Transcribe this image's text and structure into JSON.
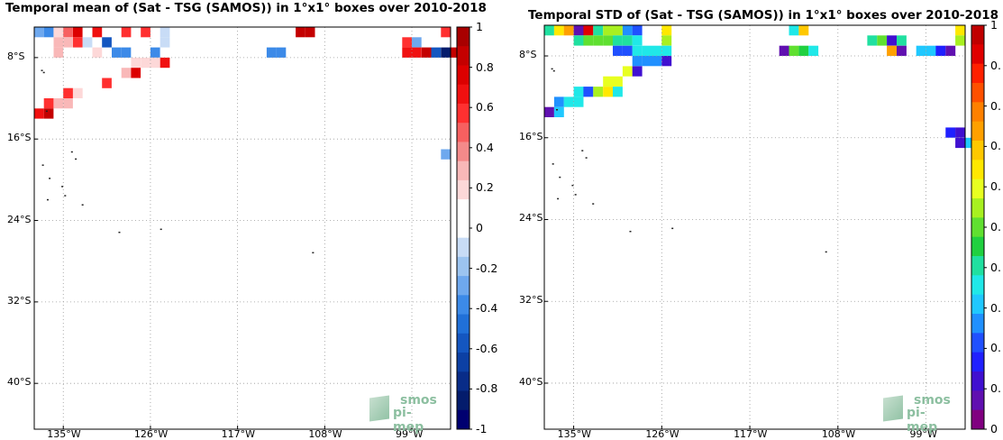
{
  "left": {
    "title": "Temporal mean of (Sat - TSG (SAMOS)) in 1°x1° boxes over 2010-2018",
    "lat_ticks": [
      "8°S",
      "16°S",
      "24°S",
      "32°S",
      "40°S"
    ],
    "lon_ticks": [
      "135°W",
      "126°W",
      "117°W",
      "108°W",
      "99°W"
    ],
    "colorbar": {
      "ticks": [
        "1",
        "0.8",
        "0.6",
        "0.4",
        "0.2",
        "0",
        "-0.2",
        "-0.4",
        "-0.6",
        "-0.8",
        "-1"
      ],
      "colors": [
        "#a80000",
        "#c40000",
        "#dc0000",
        "#f01010",
        "#ff3030",
        "#f76060",
        "#f48a8a",
        "#f9b8b8",
        "#fdd8d8",
        "#ffffff",
        "#ffffff",
        "#c8dcf6",
        "#9cc4f0",
        "#6ea8ee",
        "#3c8ae8",
        "#2070d8",
        "#1456c0",
        "#0c40a4",
        "#082c88",
        "#041c6c",
        "#000070"
      ]
    },
    "logo": {
      "line1": "smos",
      "line2": "pi-mep"
    }
  },
  "right": {
    "title": "Temporal STD of (Sat - TSG (SAMOS)) in 1°x1° boxes over 2010-2018",
    "lat_ticks": [
      "8°S",
      "16°S",
      "24°S",
      "32°S",
      "40°S"
    ],
    "lon_ticks": [
      "135°W",
      "126°W",
      "117°W",
      "108°W",
      "99°W"
    ],
    "colorbar": {
      "ticks": [
        "1",
        "0.",
        "0.",
        "0.",
        "0.",
        "0.",
        "0.",
        "0.",
        "0.",
        "0.",
        "0"
      ],
      "colors": [
        "#c00000",
        "#e00000",
        "#ff2000",
        "#ff5000",
        "#ff8000",
        "#ffa000",
        "#ffc800",
        "#ffe800",
        "#e8ff20",
        "#a8f020",
        "#60e030",
        "#20d040",
        "#20e0a0",
        "#20e8e8",
        "#20c8ff",
        "#2090ff",
        "#2050ff",
        "#2020ff",
        "#4010d0",
        "#6010b0",
        "#800080"
      ]
    },
    "logo": {
      "line1": "smos",
      "line2": "pi-mep"
    }
  },
  "chart_data": [
    {
      "type": "heatmap",
      "title": "Temporal mean of (Sat - TSG (SAMOS)) in 1°x1° boxes over 2010-2018",
      "xlabel": "",
      "ylabel": "",
      "x_range": [
        -138,
        -95
      ],
      "y_range": [
        -44.5,
        -5
      ],
      "x_ticks": [
        -135,
        -126,
        -117,
        -108,
        -99
      ],
      "y_ticks": [
        -8,
        -16,
        -24,
        -32,
        -40
      ],
      "clim": [
        -1,
        1
      ],
      "grid": true,
      "cells": [
        {
          "lon": -137.5,
          "lat": -5.5,
          "v": -0.3
        },
        {
          "lon": -136.5,
          "lat": -5.5,
          "v": -0.4
        },
        {
          "lon": -135.5,
          "lat": -5.5,
          "v": 0.2
        },
        {
          "lon": -134.5,
          "lat": -5.5,
          "v": 0.5
        },
        {
          "lon": -133.5,
          "lat": -5.5,
          "v": 0.8
        },
        {
          "lon": -132.5,
          "lat": -5.5,
          "v": 0.1
        },
        {
          "lon": -131.5,
          "lat": -5.5,
          "v": 0.7
        },
        {
          "lon": -128.5,
          "lat": -5.5,
          "v": 0.6
        },
        {
          "lon": -126.5,
          "lat": -5.5,
          "v": 0.6
        },
        {
          "lon": -124.5,
          "lat": -5.5,
          "v": -0.1
        },
        {
          "lon": -110.5,
          "lat": -5.5,
          "v": 0.9
        },
        {
          "lon": -109.5,
          "lat": -5.5,
          "v": 0.9
        },
        {
          "lon": -95.5,
          "lat": -5.5,
          "v": 0.6
        },
        {
          "lon": -135.5,
          "lat": -6.5,
          "v": 0.3
        },
        {
          "lon": -134.5,
          "lat": -6.5,
          "v": 0.3
        },
        {
          "lon": -133.5,
          "lat": -6.5,
          "v": 0.6
        },
        {
          "lon": -132.5,
          "lat": -6.5,
          "v": -0.1
        },
        {
          "lon": -130.5,
          "lat": -6.5,
          "v": -0.6
        },
        {
          "lon": -124.5,
          "lat": -6.5,
          "v": -0.1
        },
        {
          "lon": -101.5,
          "lat": -6.5,
          "v": 0.1
        },
        {
          "lon": -100.5,
          "lat": -6.5,
          "v": 0.1
        },
        {
          "lon": -99.5,
          "lat": -6.5,
          "v": 0.6
        },
        {
          "lon": -98.5,
          "lat": -6.5,
          "v": -0.3
        },
        {
          "lon": -135.5,
          "lat": -7.5,
          "v": 0.3
        },
        {
          "lon": -131.5,
          "lat": -7.5,
          "v": 0.2
        },
        {
          "lon": -129.5,
          "lat": -7.5,
          "v": -0.4
        },
        {
          "lon": -128.5,
          "lat": -7.5,
          "v": -0.4
        },
        {
          "lon": -127.5,
          "lat": -7.5,
          "v": 0.1
        },
        {
          "lon": -125.5,
          "lat": -7.5,
          "v": -0.4
        },
        {
          "lon": -113.5,
          "lat": -7.5,
          "v": -0.4
        },
        {
          "lon": -112.5,
          "lat": -7.5,
          "v": -0.4
        },
        {
          "lon": -99.5,
          "lat": -7.5,
          "v": 0.7
        },
        {
          "lon": -98.5,
          "lat": -7.5,
          "v": 0.7
        },
        {
          "lon": -97.5,
          "lat": -7.5,
          "v": 0.9
        },
        {
          "lon": -96.5,
          "lat": -7.5,
          "v": -0.6
        },
        {
          "lon": -95.5,
          "lat": -7.5,
          "v": -0.9
        },
        {
          "lon": -94.5,
          "lat": -7.5,
          "v": 0.9
        },
        {
          "lon": -127.5,
          "lat": -8.5,
          "v": 0.2
        },
        {
          "lon": -126.5,
          "lat": -8.5,
          "v": 0.2
        },
        {
          "lon": -125.5,
          "lat": -8.5,
          "v": 0.2
        },
        {
          "lon": -124.5,
          "lat": -8.5,
          "v": 0.7
        },
        {
          "lon": -128.5,
          "lat": -9.5,
          "v": 0.3
        },
        {
          "lon": -127.5,
          "lat": -9.5,
          "v": 0.8
        },
        {
          "lon": -130.5,
          "lat": -10.5,
          "v": 0.6
        },
        {
          "lon": -134.5,
          "lat": -11.5,
          "v": 0.6
        },
        {
          "lon": -133.5,
          "lat": -11.5,
          "v": 0.2
        },
        {
          "lon": -136.5,
          "lat": -12.5,
          "v": 0.6
        },
        {
          "lon": -135.5,
          "lat": -12.5,
          "v": 0.3
        },
        {
          "lon": -134.5,
          "lat": -12.5,
          "v": 0.3
        },
        {
          "lon": -137.5,
          "lat": -13.5,
          "v": 0.7
        },
        {
          "lon": -136.5,
          "lat": -13.5,
          "v": 0.9
        },
        {
          "lon": -95.5,
          "lat": -17.5,
          "v": -0.3
        }
      ]
    },
    {
      "type": "heatmap",
      "title": "Temporal STD of (Sat - TSG (SAMOS)) in 1°x1° boxes over 2010-2018",
      "xlabel": "",
      "ylabel": "",
      "x_range": [
        -138,
        -95
      ],
      "y_range": [
        -44.5,
        -5
      ],
      "x_ticks": [
        -135,
        -126,
        -117,
        -108,
        -99
      ],
      "y_ticks": [
        -8,
        -16,
        -24,
        -32,
        -40
      ],
      "clim": [
        0,
        1
      ],
      "grid": true,
      "cells": [
        {
          "lon": -137.5,
          "lat": -5.5,
          "v": 0.4
        },
        {
          "lon": -136.5,
          "lat": -5.5,
          "v": 0.65
        },
        {
          "lon": -135.5,
          "lat": -5.5,
          "v": 0.75
        },
        {
          "lon": -134.5,
          "lat": -5.5,
          "v": 0.05
        },
        {
          "lon": -133.5,
          "lat": -5.5,
          "v": 0.95
        },
        {
          "lon": -132.5,
          "lat": -5.5,
          "v": 0.4
        },
        {
          "lon": -131.5,
          "lat": -5.5,
          "v": 0.55
        },
        {
          "lon": -130.5,
          "lat": -5.5,
          "v": 0.55
        },
        {
          "lon": -129.5,
          "lat": -5.5,
          "v": 0.25
        },
        {
          "lon": -128.5,
          "lat": -5.5,
          "v": 0.2
        },
        {
          "lon": -125.5,
          "lat": -5.5,
          "v": 0.65
        },
        {
          "lon": -112.5,
          "lat": -5.5,
          "v": 0.35
        },
        {
          "lon": -111.5,
          "lat": -5.5,
          "v": 0.7
        },
        {
          "lon": -95.5,
          "lat": -5.5,
          "v": 0.65
        },
        {
          "lon": -134.5,
          "lat": -6.5,
          "v": 0.4
        },
        {
          "lon": -133.5,
          "lat": -6.5,
          "v": 0.5
        },
        {
          "lon": -132.5,
          "lat": -6.5,
          "v": 0.5
        },
        {
          "lon": -131.5,
          "lat": -6.5,
          "v": 0.5
        },
        {
          "lon": -130.5,
          "lat": -6.5,
          "v": 0.4
        },
        {
          "lon": -129.5,
          "lat": -6.5,
          "v": 0.4
        },
        {
          "lon": -128.5,
          "lat": -6.5,
          "v": 0.35
        },
        {
          "lon": -125.5,
          "lat": -6.5,
          "v": 0.55
        },
        {
          "lon": -104.5,
          "lat": -6.5,
          "v": 0.4
        },
        {
          "lon": -103.5,
          "lat": -6.5,
          "v": 0.5
        },
        {
          "lon": -102.5,
          "lat": -6.5,
          "v": 0.1
        },
        {
          "lon": -101.5,
          "lat": -6.5,
          "v": 0.4
        },
        {
          "lon": -95.5,
          "lat": -6.5,
          "v": 0.55
        },
        {
          "lon": -130.5,
          "lat": -7.5,
          "v": 0.2
        },
        {
          "lon": -129.5,
          "lat": -7.5,
          "v": 0.2
        },
        {
          "lon": -128.5,
          "lat": -7.5,
          "v": 0.35
        },
        {
          "lon": -127.5,
          "lat": -7.5,
          "v": 0.35
        },
        {
          "lon": -126.5,
          "lat": -7.5,
          "v": 0.35
        },
        {
          "lon": -125.5,
          "lat": -7.5,
          "v": 0.35
        },
        {
          "lon": -113.5,
          "lat": -7.5,
          "v": 0.05
        },
        {
          "lon": -112.5,
          "lat": -7.5,
          "v": 0.5
        },
        {
          "lon": -111.5,
          "lat": -7.5,
          "v": 0.45
        },
        {
          "lon": -110.5,
          "lat": -7.5,
          "v": 0.35
        },
        {
          "lon": -102.5,
          "lat": -7.5,
          "v": 0.75
        },
        {
          "lon": -101.5,
          "lat": -7.5,
          "v": 0.05
        },
        {
          "lon": -99.5,
          "lat": -7.5,
          "v": 0.3
        },
        {
          "lon": -98.5,
          "lat": -7.5,
          "v": 0.3
        },
        {
          "lon": -97.5,
          "lat": -7.5,
          "v": 0.15
        },
        {
          "lon": -96.5,
          "lat": -7.5,
          "v": 0.05
        },
        {
          "lon": -128.5,
          "lat": -8.5,
          "v": 0.25
        },
        {
          "lon": -127.5,
          "lat": -8.5,
          "v": 0.25
        },
        {
          "lon": -126.5,
          "lat": -8.5,
          "v": 0.25
        },
        {
          "lon": -125.5,
          "lat": -8.5,
          "v": 0.1
        },
        {
          "lon": -129.5,
          "lat": -9.5,
          "v": 0.6
        },
        {
          "lon": -128.5,
          "lat": -9.5,
          "v": 0.1
        },
        {
          "lon": -131.5,
          "lat": -10.5,
          "v": 0.6
        },
        {
          "lon": -130.5,
          "lat": -10.5,
          "v": 0.6
        },
        {
          "lon": -134.5,
          "lat": -11.5,
          "v": 0.35
        },
        {
          "lon": -133.5,
          "lat": -11.5,
          "v": 0.2
        },
        {
          "lon": -132.5,
          "lat": -11.5,
          "v": 0.55
        },
        {
          "lon": -131.5,
          "lat": -11.5,
          "v": 0.65
        },
        {
          "lon": -130.5,
          "lat": -11.5,
          "v": 0.35
        },
        {
          "lon": -136.5,
          "lat": -12.5,
          "v": 0.25
        },
        {
          "lon": -135.5,
          "lat": -12.5,
          "v": 0.35
        },
        {
          "lon": -134.5,
          "lat": -12.5,
          "v": 0.35
        },
        {
          "lon": -137.5,
          "lat": -13.5,
          "v": 0.05
        },
        {
          "lon": -136.5,
          "lat": -13.5,
          "v": 0.3
        },
        {
          "lon": -96.5,
          "lat": -15.5,
          "v": 0.15
        },
        {
          "lon": -95.5,
          "lat": -15.5,
          "v": 0.1
        },
        {
          "lon": -95.5,
          "lat": -16.5,
          "v": 0.1
        },
        {
          "lon": -94.5,
          "lat": -16.5,
          "v": 0.3
        }
      ]
    }
  ]
}
